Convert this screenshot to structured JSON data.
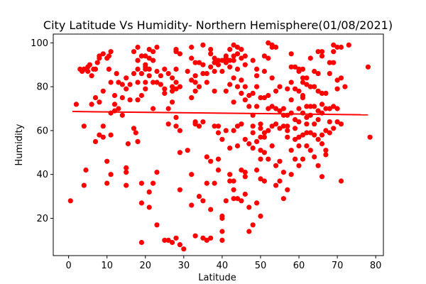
{
  "chart_data": {
    "type": "scatter",
    "title": "City Latitude Vs Humidity- Northern Hemisphere(01/08/2021)",
    "xlabel": "Latitude",
    "ylabel": "Humidity",
    "xlim": [
      -4,
      82
    ],
    "ylim": [
      3,
      104
    ],
    "xticks": [
      0,
      10,
      20,
      30,
      40,
      50,
      60,
      70,
      80
    ],
    "yticks": [
      20,
      40,
      60,
      80,
      100
    ],
    "grid": false,
    "legend": "none",
    "point_color": "#ff0000",
    "line_color": "#ff0000",
    "regression_line": {
      "x": [
        1,
        78
      ],
      "y": [
        68.7,
        67.2
      ]
    },
    "points": [
      [
        0.5,
        28
      ],
      [
        2,
        72
      ],
      [
        3,
        88
      ],
      [
        3.5,
        87
      ],
      [
        4,
        35
      ],
      [
        4,
        62
      ],
      [
        4,
        88
      ],
      [
        4.5,
        42
      ],
      [
        5,
        89
      ],
      [
        5.5,
        90
      ],
      [
        5,
        87
      ],
      [
        6,
        85
      ],
      [
        6.5,
        88
      ],
      [
        6,
        72
      ],
      [
        7,
        75
      ],
      [
        7,
        55
      ],
      [
        7,
        88
      ],
      [
        7.5,
        91
      ],
      [
        8,
        93
      ],
      [
        8,
        94
      ],
      [
        8,
        73
      ],
      [
        8,
        58
      ],
      [
        9,
        57
      ],
      [
        9,
        95
      ],
      [
        9,
        78
      ],
      [
        9,
        62
      ],
      [
        10,
        46
      ],
      [
        10,
        36
      ],
      [
        10,
        93
      ],
      [
        10.5,
        94
      ],
      [
        10.5,
        88
      ],
      [
        11,
        96
      ],
      [
        11,
        82
      ],
      [
        11,
        68
      ],
      [
        11,
        40
      ],
      [
        11,
        58
      ],
      [
        12,
        76
      ],
      [
        12,
        69
      ],
      [
        12,
        72
      ],
      [
        12.5,
        86
      ],
      [
        13,
        82
      ],
      [
        13,
        70
      ],
      [
        14,
        75
      ],
      [
        14,
        81
      ],
      [
        14,
        67
      ],
      [
        15,
        79
      ],
      [
        15,
        84
      ],
      [
        15,
        43
      ],
      [
        15,
        41
      ],
      [
        15,
        35
      ],
      [
        15.5,
        54
      ],
      [
        16,
        74
      ],
      [
        16,
        81
      ],
      [
        17,
        96
      ],
      [
        17,
        86
      ],
      [
        17,
        61
      ],
      [
        17.5,
        59
      ],
      [
        18,
        98
      ],
      [
        18,
        92
      ],
      [
        18,
        88
      ],
      [
        18,
        74
      ],
      [
        18,
        82
      ],
      [
        18,
        55
      ],
      [
        19,
        94
      ],
      [
        19,
        86
      ],
      [
        19,
        76
      ],
      [
        19,
        36
      ],
      [
        19,
        27
      ],
      [
        19,
        9
      ],
      [
        20,
        88
      ],
      [
        20,
        90
      ],
      [
        20,
        94
      ],
      [
        20,
        89
      ],
      [
        20,
        82
      ],
      [
        20,
        79
      ],
      [
        21,
        97
      ],
      [
        21,
        93
      ],
      [
        21,
        88
      ],
      [
        21,
        85
      ],
      [
        21,
        32
      ],
      [
        21,
        25
      ],
      [
        22,
        96
      ],
      [
        22,
        92
      ],
      [
        22,
        82
      ],
      [
        22,
        70
      ],
      [
        22,
        36
      ],
      [
        23,
        98
      ],
      [
        23,
        87
      ],
      [
        23,
        82
      ],
      [
        23,
        41
      ],
      [
        23,
        17
      ],
      [
        24,
        81
      ],
      [
        24,
        85
      ],
      [
        25,
        88
      ],
      [
        25,
        79
      ],
      [
        25,
        77
      ],
      [
        25,
        10
      ],
      [
        26,
        86
      ],
      [
        26,
        70
      ],
      [
        26,
        63
      ],
      [
        26,
        10
      ],
      [
        27,
        84
      ],
      [
        27,
        80
      ],
      [
        27,
        78
      ],
      [
        27,
        73
      ],
      [
        27,
        9
      ],
      [
        28,
        97
      ],
      [
        28,
        96
      ],
      [
        28,
        88
      ],
      [
        28,
        82
      ],
      [
        28,
        79
      ],
      [
        28,
        66
      ],
      [
        28,
        62
      ],
      [
        28,
        11
      ],
      [
        29,
        95
      ],
      [
        29,
        80
      ],
      [
        29,
        60
      ],
      [
        29,
        50
      ],
      [
        29,
        33
      ],
      [
        29,
        8
      ],
      [
        30,
        6
      ],
      [
        31,
        51
      ],
      [
        31,
        87
      ],
      [
        32,
        98
      ],
      [
        32,
        93
      ],
      [
        32,
        83
      ],
      [
        32,
        75
      ],
      [
        32,
        40
      ],
      [
        32,
        26
      ],
      [
        33,
        91
      ],
      [
        33,
        85
      ],
      [
        33,
        82
      ],
      [
        33,
        78
      ],
      [
        33,
        64
      ],
      [
        33,
        63
      ],
      [
        33,
        12
      ],
      [
        34,
        91
      ],
      [
        34,
        80
      ],
      [
        34,
        62
      ],
      [
        34,
        30
      ],
      [
        35,
        99
      ],
      [
        35,
        90
      ],
      [
        35,
        86
      ],
      [
        35,
        64
      ],
      [
        35,
        28
      ],
      [
        35,
        11
      ],
      [
        36,
        86
      ],
      [
        36,
        82
      ],
      [
        36,
        48
      ],
      [
        36,
        36
      ],
      [
        36,
        10
      ],
      [
        37,
        97
      ],
      [
        37,
        95
      ],
      [
        37,
        89
      ],
      [
        37,
        46
      ],
      [
        37,
        24
      ],
      [
        37,
        11
      ],
      [
        38,
        93
      ],
      [
        38,
        91
      ],
      [
        38,
        87
      ],
      [
        38,
        78
      ],
      [
        38,
        62
      ],
      [
        38,
        36
      ],
      [
        39,
        92
      ],
      [
        39,
        90
      ],
      [
        39,
        62
      ],
      [
        39,
        59
      ],
      [
        39,
        47
      ],
      [
        39,
        42
      ],
      [
        40,
        92
      ],
      [
        40,
        87
      ],
      [
        40,
        56
      ],
      [
        40,
        14
      ],
      [
        40,
        10
      ],
      [
        40,
        20
      ],
      [
        40,
        21
      ],
      [
        41,
        94
      ],
      [
        41,
        93
      ],
      [
        41,
        91
      ],
      [
        41,
        78
      ],
      [
        41,
        60
      ],
      [
        41,
        28
      ],
      [
        42,
        97
      ],
      [
        42,
        92
      ],
      [
        42,
        89
      ],
      [
        42,
        81
      ],
      [
        42,
        52
      ],
      [
        42,
        40
      ],
      [
        42,
        37
      ],
      [
        43,
        99
      ],
      [
        43,
        94
      ],
      [
        43,
        92
      ],
      [
        43,
        84
      ],
      [
        43,
        73
      ],
      [
        43,
        60
      ],
      [
        43,
        37
      ],
      [
        43,
        33
      ],
      [
        43,
        29
      ],
      [
        44,
        98
      ],
      [
        44,
        95
      ],
      [
        44,
        88
      ],
      [
        44,
        80
      ],
      [
        44,
        62
      ],
      [
        44,
        53
      ],
      [
        44,
        29
      ],
      [
        45,
        97
      ],
      [
        45,
        93
      ],
      [
        45,
        83
      ],
      [
        45,
        77
      ],
      [
        45,
        63
      ],
      [
        45,
        42
      ],
      [
        45,
        28
      ],
      [
        46,
        94
      ],
      [
        46,
        90
      ],
      [
        46,
        80
      ],
      [
        46,
        74
      ],
      [
        46,
        56
      ],
      [
        46,
        41
      ],
      [
        46,
        39
      ],
      [
        46,
        31
      ],
      [
        47,
        76
      ],
      [
        47,
        71
      ],
      [
        47,
        54
      ],
      [
        47,
        25
      ],
      [
        47,
        14
      ],
      [
        48,
        92
      ],
      [
        48,
        77
      ],
      [
        48,
        67
      ],
      [
        48,
        62
      ],
      [
        48,
        59
      ],
      [
        48,
        52
      ],
      [
        48,
        17
      ],
      [
        49,
        88
      ],
      [
        49,
        85
      ],
      [
        49,
        80
      ],
      [
        49,
        71
      ],
      [
        49,
        55
      ],
      [
        49,
        42
      ],
      [
        49,
        27
      ],
      [
        50,
        75
      ],
      [
        50,
        63
      ],
      [
        50,
        61
      ],
      [
        50,
        57
      ],
      [
        50,
        51
      ],
      [
        50,
        47
      ],
      [
        50,
        38
      ],
      [
        50,
        21
      ],
      [
        51,
        94
      ],
      [
        51,
        87
      ],
      [
        51,
        75
      ],
      [
        51,
        59
      ],
      [
        51,
        57
      ],
      [
        51,
        50
      ],
      [
        51,
        37
      ],
      [
        52,
        100
      ],
      [
        52,
        93
      ],
      [
        52,
        76
      ],
      [
        52,
        70
      ],
      [
        52,
        60
      ],
      [
        52,
        47
      ],
      [
        53,
        99
      ],
      [
        53,
        98
      ],
      [
        53,
        84
      ],
      [
        53,
        71
      ],
      [
        53,
        62
      ],
      [
        53,
        53
      ],
      [
        54,
        98
      ],
      [
        54,
        78
      ],
      [
        54,
        70
      ],
      [
        54,
        63
      ],
      [
        54,
        44
      ],
      [
        54,
        35
      ],
      [
        55,
        80
      ],
      [
        55,
        69
      ],
      [
        55,
        61
      ],
      [
        55,
        46
      ],
      [
        55,
        37
      ],
      [
        56,
        70
      ],
      [
        56,
        67
      ],
      [
        56,
        62
      ],
      [
        56,
        41
      ],
      [
        56,
        29
      ],
      [
        57,
        79
      ],
      [
        57,
        67
      ],
      [
        57,
        62
      ],
      [
        57,
        60
      ],
      [
        57,
        57
      ],
      [
        57,
        33
      ],
      [
        58,
        95
      ],
      [
        58,
        89
      ],
      [
        58,
        82
      ],
      [
        58,
        74
      ],
      [
        58,
        68
      ],
      [
        58,
        51
      ],
      [
        58,
        40
      ],
      [
        59,
        89
      ],
      [
        59,
        79
      ],
      [
        59,
        65
      ],
      [
        59,
        61
      ],
      [
        59,
        56
      ],
      [
        59,
        47
      ],
      [
        60,
        88
      ],
      [
        60,
        87
      ],
      [
        60,
        78
      ],
      [
        60,
        70
      ],
      [
        60,
        64
      ],
      [
        60,
        57
      ],
      [
        60,
        53
      ],
      [
        60,
        44
      ],
      [
        61,
        88
      ],
      [
        61,
        84
      ],
      [
        61,
        82
      ],
      [
        61,
        76
      ],
      [
        61,
        75
      ],
      [
        61,
        68
      ],
      [
        61,
        58
      ],
      [
        61,
        47
      ],
      [
        62,
        84
      ],
      [
        62,
        81
      ],
      [
        62,
        71
      ],
      [
        62,
        66
      ],
      [
        62,
        63
      ],
      [
        62,
        59
      ],
      [
        62,
        53
      ],
      [
        63,
        93
      ],
      [
        63,
        80
      ],
      [
        63,
        71
      ],
      [
        63,
        67
      ],
      [
        63,
        59
      ],
      [
        63,
        51
      ],
      [
        64,
        87
      ],
      [
        64,
        80
      ],
      [
        64,
        71
      ],
      [
        64,
        63
      ],
      [
        64,
        58
      ],
      [
        64,
        48
      ],
      [
        65,
        96
      ],
      [
        65,
        86
      ],
      [
        65,
        78
      ],
      [
        65,
        69
      ],
      [
        65,
        65
      ],
      [
        65,
        56
      ],
      [
        65,
        44
      ],
      [
        66,
        96
      ],
      [
        66,
        94
      ],
      [
        66,
        77
      ],
      [
        66,
        72
      ],
      [
        66,
        68
      ],
      [
        66,
        58
      ],
      [
        66,
        54
      ],
      [
        66,
        39
      ],
      [
        67,
        77
      ],
      [
        67,
        70
      ],
      [
        67,
        60
      ],
      [
        67,
        51
      ],
      [
        67,
        49
      ],
      [
        68,
        91
      ],
      [
        68,
        86
      ],
      [
        68,
        70
      ],
      [
        68,
        64
      ],
      [
        68,
        59
      ],
      [
        69,
        99
      ],
      [
        69,
        96
      ],
      [
        69,
        91
      ],
      [
        69,
        71
      ],
      [
        69,
        61
      ],
      [
        70,
        98
      ],
      [
        70,
        83
      ],
      [
        70,
        79
      ],
      [
        70,
        70
      ],
      [
        70,
        64
      ],
      [
        71,
        98
      ],
      [
        71,
        84
      ],
      [
        71,
        63
      ],
      [
        71,
        37
      ],
      [
        72,
        80
      ],
      [
        73,
        99
      ],
      [
        78,
        89
      ],
      [
        78.5,
        57
      ]
    ]
  }
}
